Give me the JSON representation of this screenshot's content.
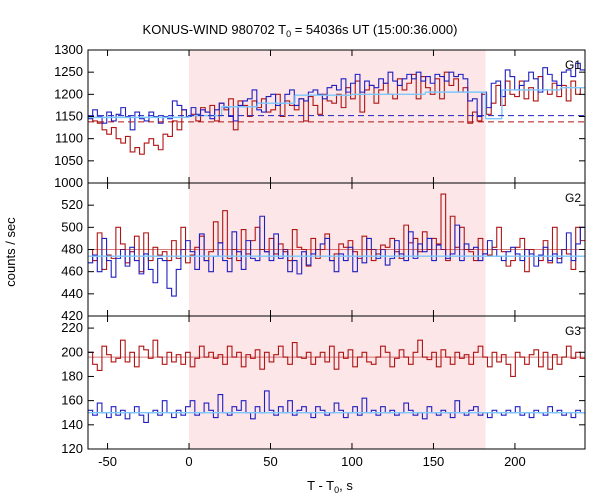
{
  "chart_data": {
    "type": "line",
    "title": {
      "prefix": "KONUS-WIND 980702 T",
      "sub": "0",
      "suffix": " = 54036s UT (15:00:36.000)"
    },
    "xlabel": {
      "prefix": "T - T",
      "sub": "0",
      "suffix": ", s"
    },
    "ylabel": "counts / sec",
    "xlim": [
      -62,
      243
    ],
    "xticks": [
      -50,
      0,
      50,
      100,
      150,
      200
    ],
    "shaded_interval": {
      "x": [
        0,
        182
      ],
      "color": "#fde6e8"
    },
    "colors": {
      "red_series": "#b01414",
      "blue_series": "#2020c0",
      "light_blue_fit": "#7cc8ff",
      "red_bg_level": "#b01414",
      "blue_bg_level": "#2020c0"
    },
    "panels": [
      {
        "label": "G1",
        "ylim": [
          1000,
          1300
        ],
        "yticks": [
          1000,
          1050,
          1100,
          1150,
          1200,
          1250,
          1300
        ],
        "series": [
          {
            "key": "red",
            "values": [
              1150,
              1140,
              1135,
              1120,
              1110,
              1125,
              1100,
              1090,
              1105,
              1070,
              1080,
              1065,
              1090,
              1100,
              1085,
              1075,
              1110,
              1105,
              1140,
              1120,
              1165,
              1150,
              1155,
              1140,
              1170,
              1160,
              1175,
              1140,
              1180,
              1165,
              1190,
              1120,
              1185,
              1175,
              1150,
              1185,
              1170,
              1190,
              1160,
              1165,
              1200,
              1150,
              1185,
              1175,
              1165,
              1190,
              1140,
              1195,
              1175,
              1155,
              1200,
              1185,
              1180,
              1200,
              1170,
              1215,
              1190,
              1230,
              1160,
              1210,
              1220,
              1180,
              1210,
              1225,
              1200,
              1190,
              1235,
              1210,
              1225,
              1245,
              1190,
              1240,
              1215,
              1200,
              1235,
              1190,
              1250,
              1220,
              1235,
              1205,
              1215,
              1135,
              1160,
              1140,
              1200,
              1155,
              1180,
              1220,
              1175,
              1230,
              1200,
              1195,
              1230,
              1190,
              1215,
              1185,
              1240,
              1210,
              1200,
              1225,
              1195,
              1220,
              1185,
              1230,
              1200,
              1215
            ]
          },
          {
            "key": "blue",
            "values": [
              1145,
              1165,
              1150,
              1135,
              1160,
              1140,
              1155,
              1170,
              1150,
              1120,
              1160,
              1145,
              1140,
              1160,
              1150,
              1135,
              1150,
              1145,
              1185,
              1175,
              1165,
              1150,
              1170,
              1155,
              1165,
              1160,
              1145,
              1165,
              1180,
              1170,
              1150,
              1140,
              1175,
              1185,
              1190,
              1210,
              1165,
              1160,
              1195,
              1200,
              1175,
              1180,
              1200,
              1210,
              1175,
              1190,
              1185,
              1205,
              1210,
              1200,
              1190,
              1215,
              1220,
              1210,
              1235,
              1205,
              1225,
              1245,
              1205,
              1230,
              1220,
              1215,
              1235,
              1225,
              1250,
              1230,
              1220,
              1235,
              1245,
              1235,
              1250,
              1230,
              1240,
              1225,
              1245,
              1240,
              1230,
              1250,
              1240,
              1245,
              1235,
              1185,
              1190,
              1150,
              1205,
              1170,
              1225,
              1230,
              1195,
              1255,
              1240,
              1210,
              1220,
              1230,
              1250,
              1235,
              1205,
              1260,
              1245,
              1230,
              1220,
              1250,
              1255,
              1240,
              1270,
              1255
            ]
          }
        ],
        "fit_steps": [
          {
            "x": [
              -62,
              0
            ],
            "y": 1148
          },
          {
            "x": [
              0,
              20
            ],
            "y": 1152
          },
          {
            "x": [
              20,
              42
            ],
            "y": 1172
          },
          {
            "x": [
              42,
              65
            ],
            "y": 1180
          },
          {
            "x": [
              65,
              100
            ],
            "y": 1198
          },
          {
            "x": [
              100,
              145
            ],
            "y": 1200
          },
          {
            "x": [
              145,
              182
            ],
            "y": 1205
          },
          {
            "x": [
              182,
              192
            ],
            "y": 1145
          },
          {
            "x": [
              192,
              228
            ],
            "y": 1210
          },
          {
            "x": [
              228,
              243
            ],
            "y": 1215
          }
        ],
        "bg_levels": [
          {
            "key": "red",
            "y": 1138
          },
          {
            "key": "blue",
            "y": 1152
          }
        ]
      },
      {
        "label": "G2",
        "ylim": [
          420,
          540
        ],
        "yticks": [
          420,
          440,
          460,
          480,
          500,
          520
        ],
        "series": [
          {
            "key": "red",
            "values": [
              480,
              470,
              495,
              462,
              475,
              472,
              500,
              485,
              468,
              478,
              492,
              460,
              495,
              470,
              482,
              475,
              478,
              470,
              488,
              472,
              500,
              468,
              475,
              482,
              492,
              470,
              478,
              505,
              486,
              515,
              472,
              480,
              470,
              498,
              476,
              488,
              500,
              480,
              478,
              490,
              476,
              485,
              478,
              470,
              498,
              482,
              480,
              465,
              490,
              472,
              480,
              494,
              470,
              476,
              485,
              482,
              488,
              478,
              472,
              492,
              480,
              470,
              476,
              484,
              482,
              490,
              478,
              472,
              502,
              486,
              490,
              478,
              496,
              480,
              490,
              485,
              530,
              470,
              510,
              482,
              500,
              480,
              478,
              470,
              490,
              476,
              475,
              482,
              500,
              478,
              465,
              470,
              482,
              490,
              460,
              480,
              474,
              470,
              488,
              468,
              500,
              472,
              480,
              476,
              462,
              500,
              488
            ]
          },
          {
            "key": "blue",
            "values": [
              468,
              475,
              460,
              490,
              470,
              455,
              472,
              480,
              465,
              482,
              470,
              458,
              476,
              462,
              450,
              472,
              470,
              445,
              438,
              462,
              480,
              488,
              478,
              462,
              494,
              470,
              460,
              474,
              486,
              470,
              460,
              496,
              478,
              462,
              488,
              472,
              470,
              510,
              478,
              470,
              494,
              472,
              480,
              460,
              470,
              458,
              478,
              466,
              476,
              480,
              485,
              490,
              470,
              460,
              476,
              470,
              482,
              460,
              474,
              468,
              490,
              480,
              472,
              480,
              466,
              472,
              488,
              476,
              470,
              496,
              472,
              485,
              478,
              490,
              470,
              484,
              480,
              472,
              476,
              502,
              470,
              485,
              480,
              482,
              470,
              476,
              488,
              480,
              474,
              470,
              478,
              482,
              476,
              470,
              480,
              476,
              465,
              475,
              482,
              470,
              476,
              468,
              480,
              495,
              470,
              485,
              500
            ]
          }
        ],
        "fit_steps": [
          {
            "x": [
              -62,
              243
            ],
            "y": 474
          }
        ],
        "bg_levels": [
          {
            "key": "red",
            "y": 480
          }
        ]
      },
      {
        "label": "G3",
        "ylim": [
          120,
          230
        ],
        "yticks": [
          120,
          140,
          160,
          180,
          200,
          220
        ],
        "series": [
          {
            "key": "red",
            "values": [
              200,
              190,
              185,
              205,
              198,
              192,
              195,
              210,
              192,
              200,
              188,
              205,
              202,
              195,
              210,
              196,
              190,
              200,
              192,
              198,
              190,
              200,
              188,
              195,
              205,
              196,
              200,
              195,
              198,
              190,
              205,
              196,
              200,
              188,
              198,
              195,
              202,
              186,
              200,
              192,
              198,
              205,
              196,
              190,
              208,
              196,
              195,
              200,
              190,
              196,
              200,
              192,
              205,
              186,
              200,
              195,
              202,
              188,
              196,
              200,
              192,
              190,
              196,
              205,
              200,
              188,
              195,
              202,
              196,
              190,
              200,
              210,
              196,
              194,
              200,
              188,
              202,
              196,
              190,
              200,
              195,
              198,
              190,
              200,
              205,
              196,
              188,
              200,
              192,
              198,
              190,
              180,
              200,
              196,
              190,
              198,
              202,
              188,
              200,
              186,
              198,
              190,
              196,
              205,
              195,
              200,
              195
            ]
          },
          {
            "key": "blue",
            "values": [
              152,
              148,
              158,
              150,
              146,
              155,
              148,
              152,
              145,
              150,
              155,
              148,
              142,
              150,
              152,
              148,
              160,
              150,
              146,
              152,
              148,
              155,
              160,
              148,
              150,
              158,
              152,
              146,
              165,
              150,
              148,
              155,
              152,
              160,
              150,
              145,
              155,
              150,
              168,
              152,
              148,
              155,
              150,
              160,
              148,
              152,
              155,
              150,
              146,
              155,
              152,
              148,
              150,
              158,
              152,
              146,
              150,
              155,
              148,
              162,
              150,
              152,
              148,
              155,
              150,
              152,
              148,
              150,
              158,
              152,
              148,
              150,
              145,
              155,
              150,
              148,
              152,
              150,
              146,
              160,
              150,
              148,
              152,
              155,
              148,
              150,
              146,
              152,
              150,
              148,
              152,
              150,
              155,
              148,
              150,
              146,
              152,
              150,
              148,
              155,
              150,
              152,
              148,
              150,
              146,
              152,
              150
            ]
          }
        ],
        "fit_steps": [
          {
            "x": [
              -62,
              243
            ],
            "y": 150
          }
        ],
        "bg_levels": [
          {
            "key": "red",
            "y": 196
          }
        ]
      }
    ]
  }
}
